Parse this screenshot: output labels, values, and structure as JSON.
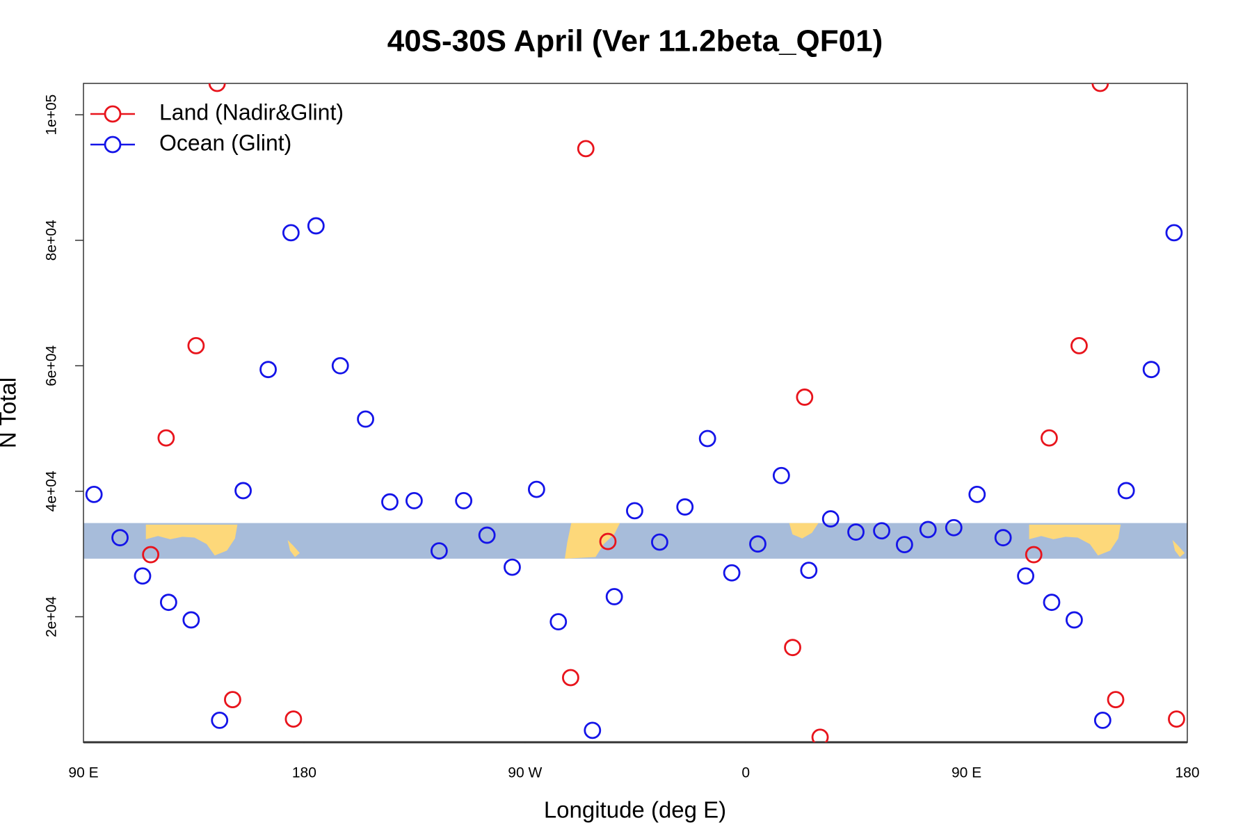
{
  "chart_data": {
    "type": "scatter",
    "title": "40S-30S April (Ver 11.2beta_QF01)",
    "x_label": "Longitude (deg E)",
    "y_label": "N Total",
    "xlim": [
      90,
      540
    ],
    "ylim": [
      0,
      105000
    ],
    "xticks": [
      {
        "value": 90,
        "label": "90 E"
      },
      {
        "value": 180,
        "label": "180"
      },
      {
        "value": 270,
        "label": "90 W"
      },
      {
        "value": 360,
        "label": "0"
      },
      {
        "value": 450,
        "label": "90 E"
      },
      {
        "value": 540,
        "label": "180"
      }
    ],
    "yticks": [
      {
        "value": 20000,
        "label": "2e+04"
      },
      {
        "value": 40000,
        "label": "4e+04"
      },
      {
        "value": 60000,
        "label": "6e+04"
      },
      {
        "value": 80000,
        "label": "8e+04"
      },
      {
        "value": 100000,
        "label": "1e+05"
      }
    ],
    "legend": "top-left",
    "series": [
      {
        "name": "Land (Nadir&Glint)",
        "color": "#e8141c",
        "x": [
          117.4,
          123.7,
          135.9,
          144.5,
          150.8,
          175.6,
          288.6,
          294.8,
          303.8,
          379.1,
          384.0,
          390.3,
          477.4,
          483.7,
          495.9,
          504.5,
          510.8,
          535.6
        ],
        "values": [
          29900,
          48500,
          63200,
          105000,
          6800,
          3700,
          10300,
          94600,
          32000,
          15100,
          55000,
          800,
          29900,
          48500,
          63200,
          105000,
          6800,
          3700
        ]
      },
      {
        "name": "Ocean (Glint)",
        "color": "#1414e8",
        "x": [
          94.3,
          104.9,
          114.1,
          124.7,
          133.9,
          145.5,
          155.1,
          165.3,
          174.6,
          184.8,
          194.7,
          205.0,
          214.9,
          224.8,
          235.0,
          245.0,
          254.5,
          264.8,
          274.7,
          283.6,
          297.5,
          306.4,
          314.7,
          324.9,
          335.2,
          344.4,
          354.3,
          364.9,
          374.5,
          385.7,
          394.6,
          404.9,
          415.4,
          424.7,
          434.3,
          444.8,
          454.3,
          464.9,
          474.1,
          484.7,
          493.9,
          505.5,
          515.1,
          525.3,
          534.6
        ],
        "values": [
          39500,
          32600,
          26500,
          22300,
          19500,
          3500,
          40100,
          59400,
          81200,
          82300,
          60000,
          51500,
          38300,
          38500,
          30500,
          38500,
          33000,
          27900,
          40300,
          19200,
          1900,
          23200,
          36900,
          31900,
          37500,
          48400,
          27000,
          31600,
          42500,
          27400,
          35600,
          33500,
          33700,
          31500,
          33900,
          34200,
          39500,
          32600,
          26500,
          22300,
          19500,
          3500,
          40100,
          59400,
          81200
        ]
      }
    ]
  }
}
